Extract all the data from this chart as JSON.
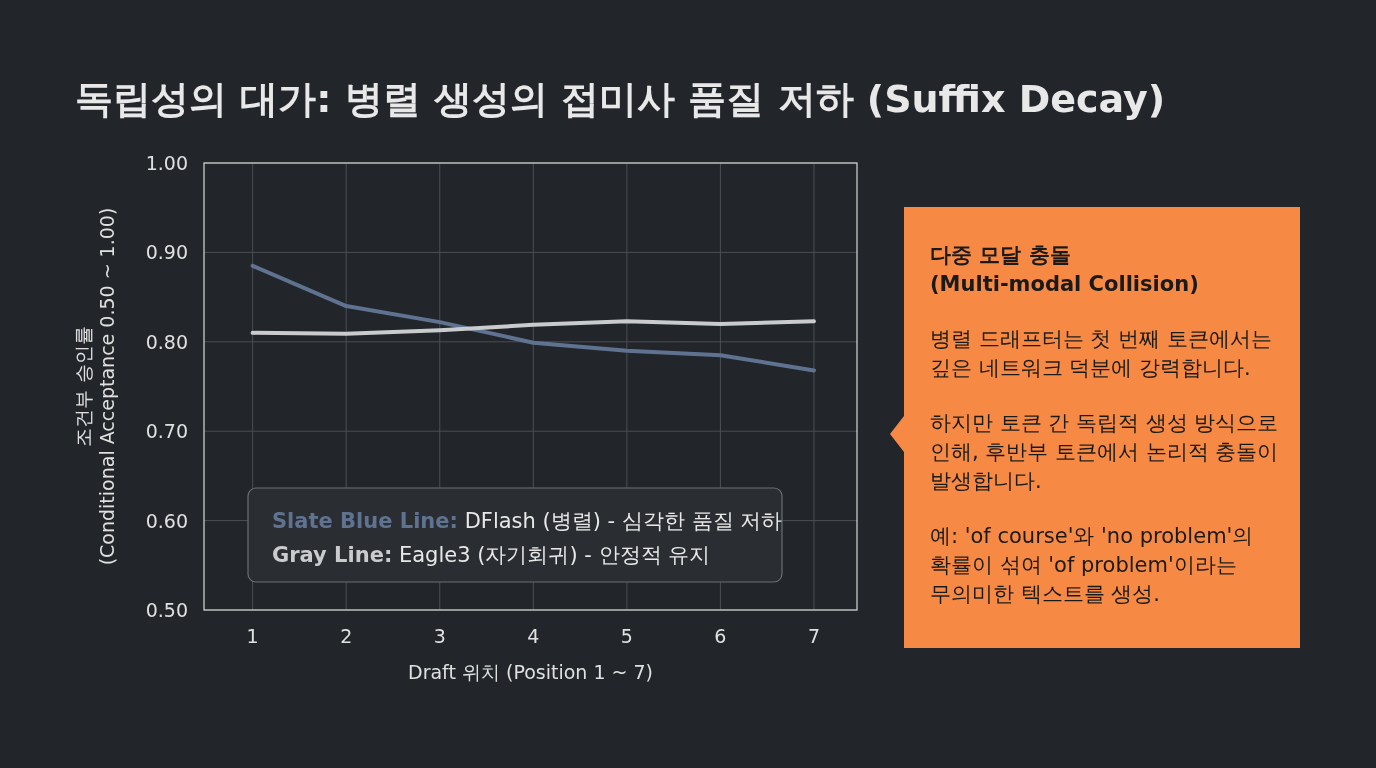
{
  "chart_data": {
    "type": "line",
    "title": "독립성의 대가: 병렬 생성의 접미사 품질 저하 (Suffix Decay)",
    "xlabel": "Draft 위치 (Position 1 ~ 7)",
    "ylabel": "조건부 승인률\n(Conditional Acceptance 0.50 ~ 1.00)",
    "x": [
      1,
      2,
      3,
      4,
      5,
      6,
      7
    ],
    "series": [
      {
        "name": "Slate Blue Line: DFlash (병렬) - 심각한 품질 저하",
        "color": "#5f7390",
        "values": [
          0.885,
          0.84,
          0.822,
          0.799,
          0.79,
          0.785,
          0.768
        ]
      },
      {
        "name": "Gray Line: Eagle3 (자기회귀) - 안정적 유지",
        "color": "#c9cbcd",
        "values": [
          0.81,
          0.809,
          0.813,
          0.819,
          0.823,
          0.82,
          0.823
        ]
      }
    ],
    "xlim": [
      0.48,
      7.46
    ],
    "xticks": [
      1,
      2,
      3,
      4,
      5,
      6,
      7
    ],
    "ylim": [
      0.5,
      1.0
    ],
    "yticks": [
      {
        "value": 0.5,
        "label": "0.50"
      },
      {
        "value": 0.6,
        "label": "0.60"
      },
      {
        "value": 0.7,
        "label": "0.70"
      },
      {
        "value": 0.8,
        "label": "0.80"
      },
      {
        "value": 0.9,
        "label": "0.90"
      },
      {
        "value": 1.0,
        "label": "1.00"
      }
    ],
    "grid": true,
    "legend": "bottom left",
    "marker": "none",
    "line_style": "solid",
    "annotations": [
      "다중 모달 충돌\n(Multi-modal Collision)",
      "병렬 드래프터는 첫 번째 토큰에서는\n깊은 네트워크 덕분에 강력합니다.",
      "하지만 토큰 간 독립적 생성 방식으로\n인해, 후반부 토큰에서 논리적 충돌이\n발생합니다.",
      "예: 'of course'와 'no problem'의\n확률이 섞여 'of problem'이라는\n무의미한 텍스트를 생성."
    ]
  }
}
